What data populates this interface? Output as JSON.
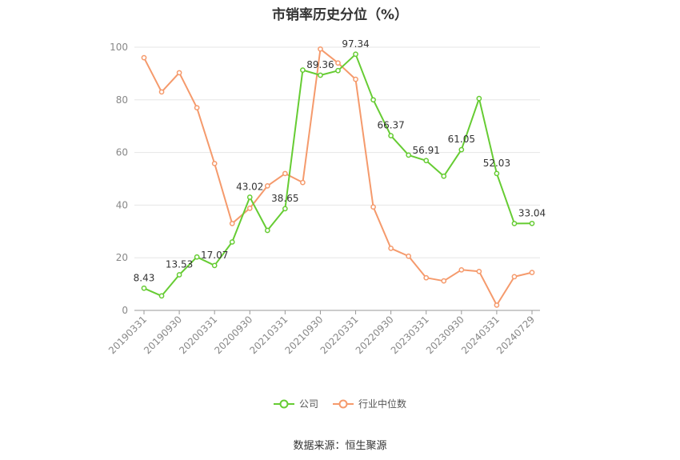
{
  "chart_data": {
    "type": "line",
    "title": "市销率历史分位（%）",
    "xlabel": "",
    "ylabel": "",
    "ylim": [
      0,
      100
    ],
    "yticks": [
      0,
      20,
      40,
      60,
      80,
      100
    ],
    "grid": true,
    "legend_position": "bottom",
    "x": [
      "20190331",
      "20190630",
      "20190930",
      "20191231",
      "20200331",
      "20200630",
      "20200930",
      "20201231",
      "20210331",
      "20210630",
      "20210930",
      "20211231",
      "20220331",
      "20220630",
      "20220930",
      "20221231",
      "20230331",
      "20230630",
      "20230930",
      "20231231",
      "20240331",
      "20240630",
      "20240729"
    ],
    "xtick_labels": [
      "20190331",
      "20190930",
      "20200331",
      "20200930",
      "20210331",
      "20210930",
      "20220331",
      "20220930",
      "20230331",
      "20230930",
      "20240331",
      "20240729"
    ],
    "series": [
      {
        "name": "公司",
        "color": "#66cc33",
        "values": [
          8.43,
          5.5,
          13.53,
          20.3,
          17.07,
          26.0,
          43.02,
          30.4,
          38.65,
          91.3,
          89.36,
          91.1,
          97.34,
          80.0,
          66.37,
          59.0,
          56.91,
          51.0,
          61.05,
          80.5,
          52.03,
          33.0,
          33.04
        ],
        "data_labels": {
          "0": "8.43",
          "2": "13.53",
          "4": "17.07",
          "6": "43.02",
          "8": "38.65",
          "10": "89.36",
          "12": "97.34",
          "14": "66.37",
          "16": "56.91",
          "18": "61.05",
          "20": "52.03",
          "22": "33.04"
        }
      },
      {
        "name": "行业中位数",
        "color": "#f59a6c",
        "values": [
          96.0,
          83.0,
          90.3,
          77.0,
          55.8,
          33.0,
          38.8,
          47.3,
          52.0,
          48.6,
          99.3,
          94.0,
          87.8,
          39.3,
          23.6,
          20.6,
          12.4,
          11.2,
          15.4,
          14.8,
          2.0,
          12.8,
          14.4
        ]
      }
    ]
  },
  "source_note": "数据来源：恒生聚源"
}
